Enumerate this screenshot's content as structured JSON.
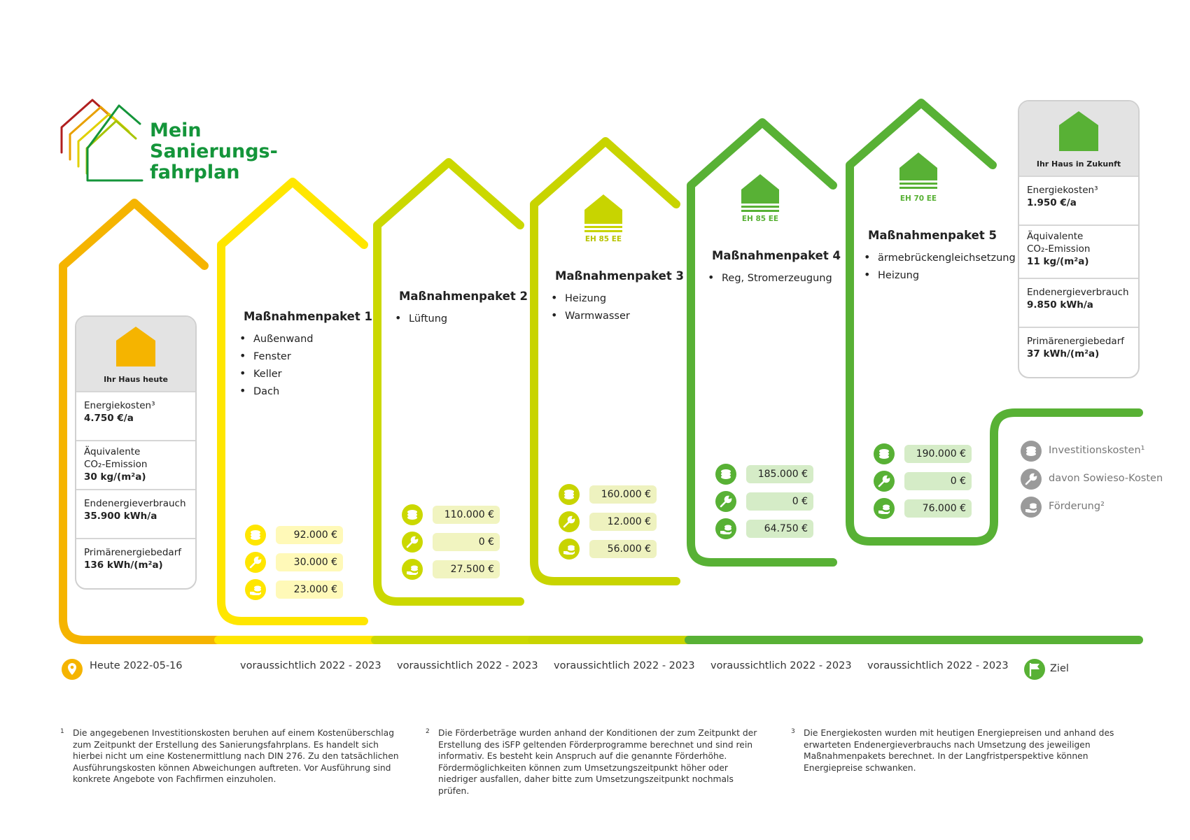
{
  "logo": {
    "line1": "Mein",
    "line2": "Sanierungs-",
    "line3": "fahrplan"
  },
  "colors": {
    "orange": "#f5b400",
    "yellow": "#ffe600",
    "lime": "#cbd800",
    "lime2": "#c8d400",
    "green": "#58b135",
    "grey": "#9a9a9a"
  },
  "today_card": {
    "title": "Ihr Haus heute",
    "rows": [
      {
        "label": "Energiekosten³",
        "value": "4.750 €/a"
      },
      {
        "label": "Äquivalente",
        "label2": "CO₂-Emission",
        "value": "30 kg/(m²a)"
      },
      {
        "label": "Endenergieverbrauch",
        "value": "35.900 kWh/a"
      },
      {
        "label": "Primärenergiebedarf",
        "value": "136 kWh/(m²a)"
      }
    ]
  },
  "future_card": {
    "title": "Ihr Haus in Zukunft",
    "rows": [
      {
        "label": "Energiekosten³",
        "value": "1.950 €/a"
      },
      {
        "label": "Äquivalente",
        "label2": "CO₂-Emission",
        "value": "11 kg/(m²a)"
      },
      {
        "label": "Endenergieverbrauch",
        "value": "9.850 kWh/a"
      },
      {
        "label": "Primärenergiebedarf",
        "value": "37 kWh/(m²a)"
      }
    ]
  },
  "packages": [
    {
      "title": "Maßnahmenpaket 1",
      "items": [
        "Außenwand",
        "Fenster",
        "Keller",
        "Dach"
      ],
      "costs": [
        "92.000 €",
        "30.000 €",
        "23.000 €"
      ],
      "eh": ""
    },
    {
      "title": "Maßnahmenpaket 2",
      "items": [
        "Lüftung"
      ],
      "costs": [
        "110.000 €",
        "0 €",
        "27.500 €"
      ],
      "eh": ""
    },
    {
      "title": "Maßnahmenpaket 3",
      "items": [
        "Heizung",
        "Warmwasser"
      ],
      "costs": [
        "160.000 €",
        "12.000 €",
        "56.000 €"
      ],
      "eh": "EH 85 EE"
    },
    {
      "title": "Maßnahmenpaket 4",
      "items": [
        "Reg, Stromerzeugung"
      ],
      "costs": [
        "185.000 €",
        "0 €",
        "64.750 €"
      ],
      "eh": "EH 85 EE"
    },
    {
      "title": "Maßnahmenpaket 5",
      "items": [
        "ärmebrückengleichsetzung",
        "Heizung"
      ],
      "costs": [
        "190.000 €",
        "0 €",
        "76.000 €"
      ],
      "eh": "EH 70 EE"
    }
  ],
  "legend": {
    "invest": "Investitionskosten¹",
    "sowieso": "davon Sowieso-Kosten",
    "foerderung": "Förderung²"
  },
  "timeline": {
    "today": "Heute 2022-05-16",
    "d1": "voraussichtlich 2022 - 2023",
    "d2": "voraussichtlich 2022 - 2023",
    "d3": "voraussichtlich 2022 - 2023",
    "d4": "voraussichtlich 2022 - 2023",
    "d5": "voraussichtlich 2022 - 2023",
    "goal": "Ziel"
  },
  "footnotes": {
    "n1": "1",
    "t1": "Die angegebenen Investitionskosten beruhen auf einem Kostenüberschlag zum Zeitpunkt der Erstellung des Sanierungsfahrplans. Es handelt sich hierbei nicht um eine Kostenermittlung nach DIN 276. Zu den tatsächlichen Ausführungskosten können Abweichungen auftreten. Vor Ausführung sind konkrete Angebote von Fachfirmen einzuholen.",
    "n2": "2",
    "t2": "Die Förderbeträge wurden anhand der Konditionen der zum Zeitpunkt der Erstellung des iSFP geltenden Förderprogramme berechnet und sind rein informativ. Es besteht kein Anspruch auf die genannte Förderhöhe. Fördermöglichkeiten können zum Umsetzungszeitpunkt höher oder niedriger ausfallen, daher bitte zum Umsetzungszeitpunkt nochmals prüfen.",
    "n3": "3",
    "t3": "Die Energiekosten wurden mit heutigen Energiepreisen und anhand des erwarteten Endenergieverbrauchs nach Umsetzung des jeweiligen Maßnahmenpakets berechnet. In der Langfristperspektive können Energiepreise schwanken."
  }
}
